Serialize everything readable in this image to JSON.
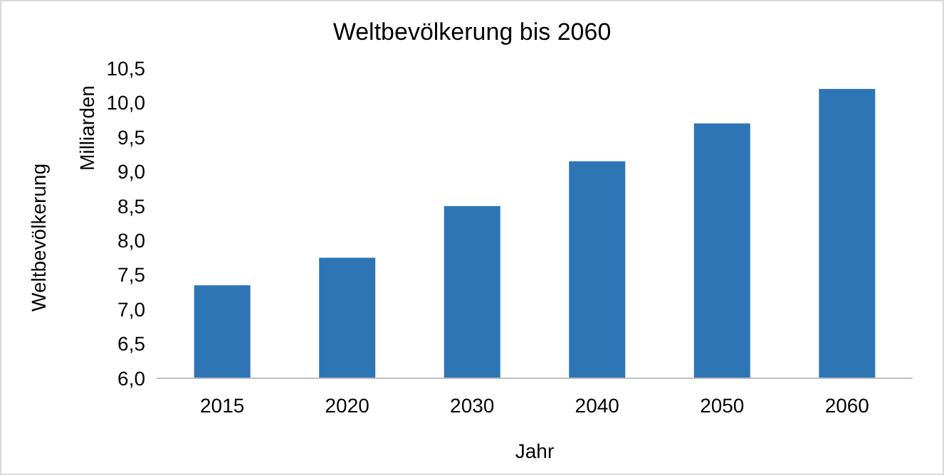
{
  "chart_data": {
    "type": "bar",
    "title": "Weltbevölkerung bis 2060",
    "xlabel": "Jahr",
    "ylabel": "Weltbevölkerung\nMilliarden",
    "categories": [
      "2015",
      "2020",
      "2030",
      "2040",
      "2050",
      "2060"
    ],
    "values": [
      7.35,
      7.75,
      8.5,
      9.15,
      9.7,
      10.2
    ],
    "color": "#2e75b6",
    "ylim": [
      6,
      10.5
    ],
    "yticks": [
      {
        "value": 6,
        "label": "6,0"
      },
      {
        "value": 6.5,
        "label": "6,5"
      },
      {
        "value": 7,
        "label": "7,0"
      },
      {
        "value": 7.5,
        "label": "7,5"
      },
      {
        "value": 8,
        "label": "8,0"
      },
      {
        "value": 8.5,
        "label": "8,5"
      },
      {
        "value": 9,
        "label": "9,0"
      },
      {
        "value": 9.5,
        "label": "9,5"
      },
      {
        "value": 10,
        "label": "10,0"
      },
      {
        "value": 10.5,
        "label": "10,5"
      }
    ],
    "grid": false
  }
}
